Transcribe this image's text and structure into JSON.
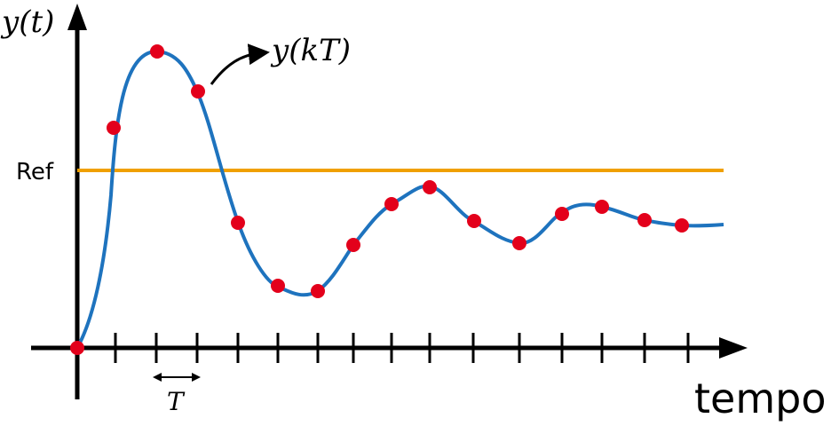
{
  "labels": {
    "y_axis": "y(t)",
    "ref": "Ref",
    "samples": "y(kT)",
    "period": "T",
    "x_axis": "tempo"
  },
  "colors": {
    "response": "#1e73be",
    "reference": "#f0a000",
    "samples": "#e3001b",
    "axes": "#000000"
  }
}
